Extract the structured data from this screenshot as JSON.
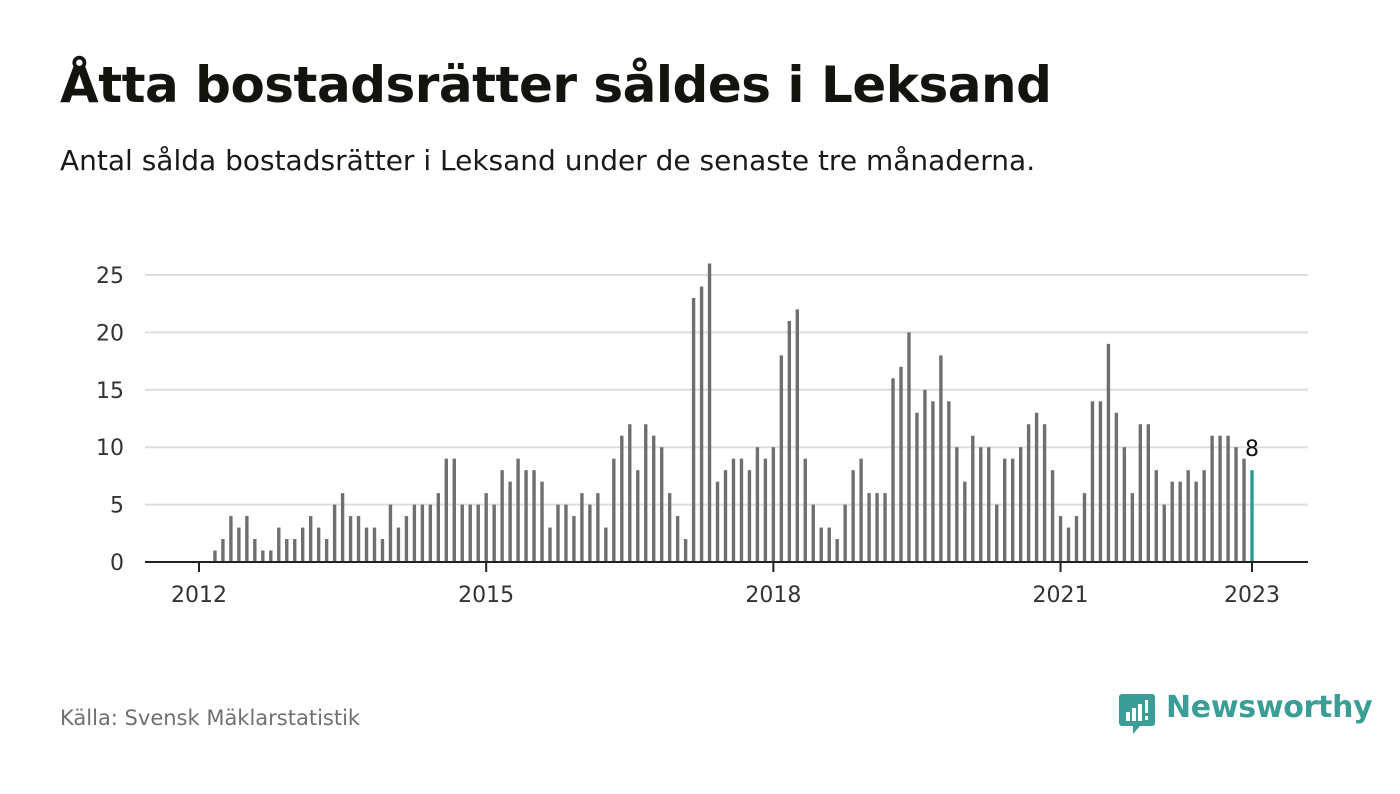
{
  "header": {
    "title": "Åtta bostadsrätter såldes i Leksand",
    "subtitle": "Antal sålda bostadsrätter i Leksand under de senaste tre månaderna."
  },
  "footer": {
    "source": "Källa: Svensk Mäklarstatistik",
    "brand": "Newsworthy"
  },
  "colors": {
    "bar": "#6f6f73",
    "highlight": "#2a9d8f",
    "grid": "#dddddd",
    "axis": "#222222",
    "brand": "#3a9e96"
  },
  "icons": [
    "newsworthy-logo-icon"
  ],
  "chart_data": {
    "type": "bar",
    "title": "Åtta bostadsrätter såldes i Leksand",
    "xlabel": "",
    "ylabel": "",
    "x_ticks": [
      "2012",
      "2015",
      "2018",
      "2021",
      "2023"
    ],
    "x_tick_indices": [
      0,
      36,
      72,
      108,
      132
    ],
    "y_ticks": [
      0,
      5,
      10,
      15,
      20,
      25
    ],
    "ylim": [
      0,
      25
    ],
    "grid": true,
    "highlight_index": 132,
    "highlight_label": "8",
    "values": [
      0,
      0,
      1,
      2,
      4,
      3,
      4,
      2,
      1,
      1,
      3,
      2,
      2,
      3,
      4,
      3,
      2,
      5,
      6,
      4,
      4,
      3,
      3,
      2,
      5,
      3,
      4,
      5,
      5,
      5,
      6,
      9,
      9,
      5,
      5,
      5,
      6,
      5,
      8,
      7,
      9,
      8,
      8,
      7,
      3,
      5,
      5,
      4,
      6,
      5,
      6,
      3,
      9,
      11,
      12,
      8,
      12,
      11,
      10,
      6,
      4,
      2,
      23,
      24,
      26,
      7,
      8,
      9,
      9,
      8,
      10,
      9,
      10,
      18,
      21,
      22,
      9,
      5,
      3,
      3,
      2,
      5,
      8,
      9,
      6,
      6,
      6,
      16,
      17,
      20,
      13,
      15,
      14,
      18,
      14,
      10,
      7,
      11,
      10,
      10,
      5,
      9,
      9,
      10,
      12,
      13,
      12,
      8,
      4,
      3,
      4,
      6,
      14,
      14,
      19,
      13,
      10,
      6,
      12,
      12,
      8,
      5,
      7,
      7,
      8,
      7,
      8,
      11,
      11,
      11,
      10,
      9,
      8
    ]
  }
}
